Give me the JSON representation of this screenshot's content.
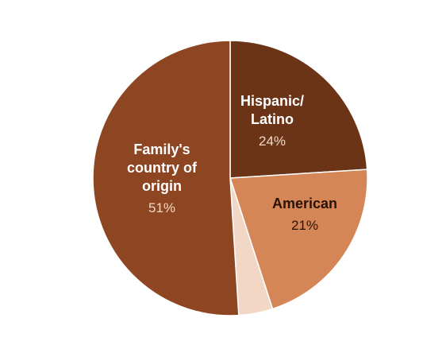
{
  "chart_data": {
    "type": "pie",
    "title": "",
    "slices": [
      {
        "label": "Hispanic/\nLatino",
        "value": 24,
        "value_label": "24%",
        "color": "#6b3417",
        "text_color": "#ffffff",
        "pct_color": "#f0d8c8"
      },
      {
        "label": "American",
        "value": 21,
        "value_label": "21%",
        "color": "#d48656",
        "text_color": "#2a1206",
        "pct_color": "#2a1206"
      },
      {
        "label": "",
        "value": 4,
        "value_label": "",
        "color": "#f2d7c6",
        "text_color": "#2a1206",
        "pct_color": "#2a1206"
      },
      {
        "label": "Family's\ncountry of\norigin",
        "value": 51,
        "value_label": "51%",
        "color": "#8e4521",
        "text_color": "#ffffff",
        "pct_color": "#f0d8c8"
      }
    ],
    "start_angle_deg": 0,
    "direction": "clockwise",
    "legend": "none",
    "slice_border_color": "#ffffff"
  }
}
